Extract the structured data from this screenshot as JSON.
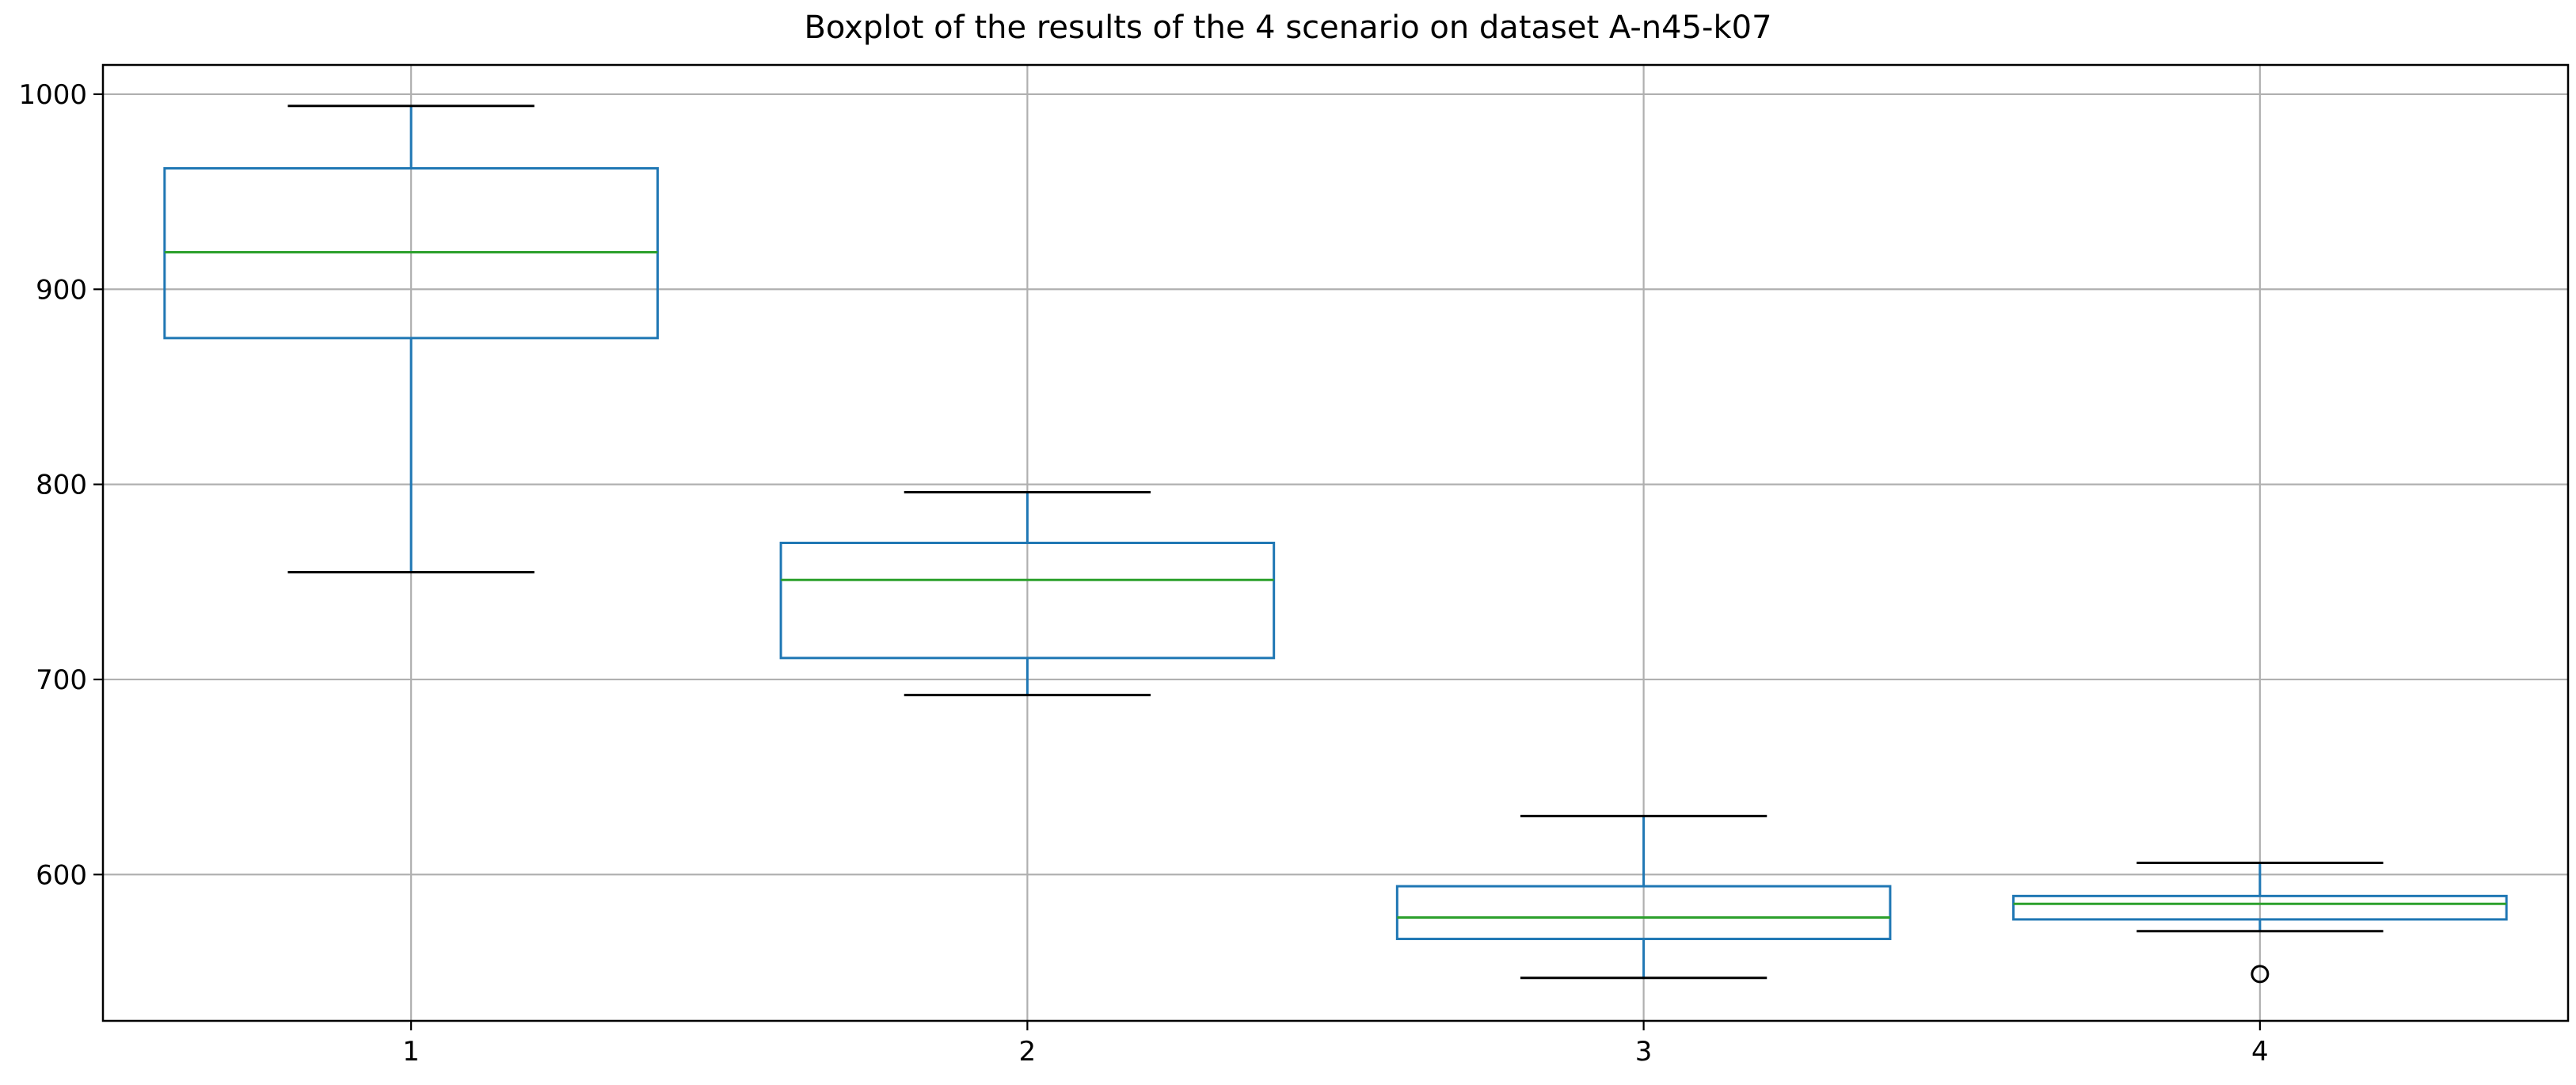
{
  "chart_data": {
    "type": "boxplot",
    "title": "Boxplot of the results of the 4 scenario on dataset A-n45-k07",
    "xlabel": "",
    "ylabel": "",
    "categories": [
      "1",
      "2",
      "3",
      "4"
    ],
    "boxes": [
      {
        "category": "1",
        "whisker_low": 755,
        "q1": 875,
        "median": 919,
        "q3": 962,
        "whisker_high": 994,
        "outliers": []
      },
      {
        "category": "2",
        "whisker_low": 692,
        "q1": 711,
        "median": 751,
        "q3": 770,
        "whisker_high": 796,
        "outliers": []
      },
      {
        "category": "3",
        "whisker_low": 547,
        "q1": 567,
        "median": 578,
        "q3": 594,
        "whisker_high": 630,
        "outliers": []
      },
      {
        "category": "4",
        "whisker_low": 571,
        "q1": 577,
        "median": 585,
        "q3": 589,
        "whisker_high": 606,
        "outliers": [
          549
        ]
      }
    ],
    "yticks": [
      600,
      700,
      800,
      900,
      1000
    ],
    "ylim": [
      525,
      1015
    ],
    "grid": true,
    "legend": "none"
  },
  "colors": {
    "box": "#1f77b4",
    "median": "#2ca02c",
    "cap": "#000000",
    "grid": "#b0b0b0",
    "axes": "#000000",
    "background": "#ffffff"
  }
}
